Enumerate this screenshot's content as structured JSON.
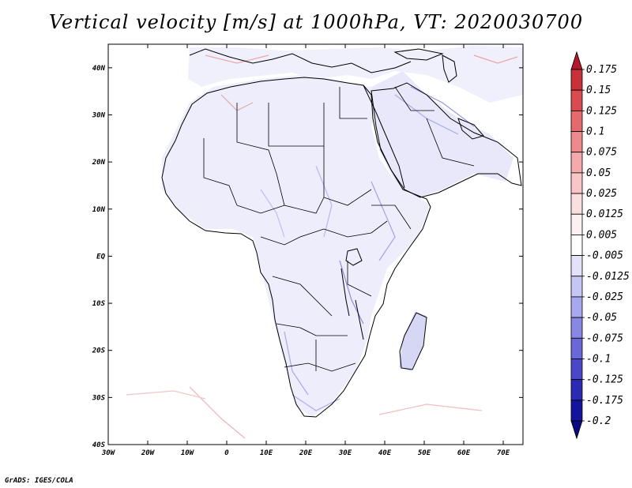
{
  "title": "Vertical velocity [m/s] at 1000hPa, VT: 2020030700",
  "credit": "GrADS: IGES/COLA",
  "map": {
    "lon_range": [
      -30,
      75
    ],
    "lat_range": [
      -40,
      45
    ],
    "lon_ticks": [
      "30W",
      "20W",
      "10W",
      "0",
      "10E",
      "20E",
      "30E",
      "40E",
      "50E",
      "60E",
      "70E"
    ],
    "lat_ticks": [
      "40S",
      "30S",
      "20S",
      "10S",
      "EQ",
      "10N",
      "20N",
      "30N",
      "40N"
    ]
  },
  "colorbar": {
    "labels": [
      "0.175",
      "0.15",
      "0.125",
      "0.1",
      "0.075",
      "0.05",
      "0.025",
      "0.0125",
      "0.005",
      "-0.005",
      "-0.0125",
      "-0.025",
      "-0.05",
      "-0.075",
      "-0.1",
      "-0.125",
      "-0.175",
      "-0.2"
    ],
    "colors": [
      "#b2182b",
      "#c8303a",
      "#da4a4e",
      "#e6696b",
      "#ee8a8b",
      "#f4aaab",
      "#f8c6c6",
      "#fbdede",
      "#fdf0f0",
      "#ffffff",
      "#e2e2fb",
      "#c6c6f5",
      "#a8a8ee",
      "#8888e4",
      "#6868d8",
      "#4848c8",
      "#2a2ab4",
      "#14149c",
      "#0a0a80"
    ]
  }
}
